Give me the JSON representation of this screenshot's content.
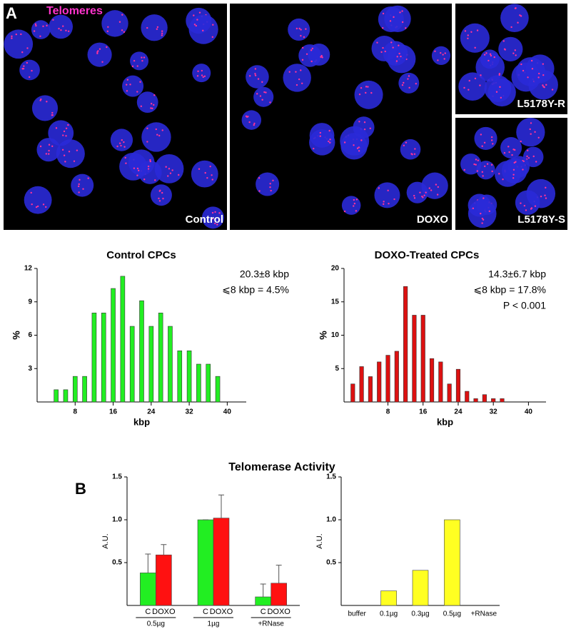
{
  "panels": {
    "a_label": "A",
    "b_label": "B",
    "stain": "Telomeres",
    "images": [
      "Control",
      "DOXO",
      "L5178Y-R",
      "L5178Y-S"
    ],
    "b_title": "Telomerase Activity"
  },
  "chart_data": [
    {
      "type": "histogram",
      "title": "Control CPCs",
      "x_label": "kbp",
      "y_label": "%",
      "color": "#22ee22",
      "x": [
        4,
        6,
        8,
        10,
        12,
        14,
        16,
        18,
        20,
        22,
        24,
        26,
        28,
        30,
        32,
        34,
        36,
        38
      ],
      "values": [
        1.1,
        1.1,
        2.3,
        2.3,
        8,
        8,
        10.2,
        11.3,
        6.8,
        9.1,
        6.8,
        8,
        6.8,
        4.6,
        4.6,
        3.4,
        3.4,
        2.3
      ],
      "xlim": [
        0,
        44
      ],
      "xticks": [
        8,
        16,
        24,
        32,
        40
      ],
      "ylim": [
        0,
        12
      ],
      "yticks": [
        3,
        6,
        9,
        12
      ],
      "annotations": [
        "20.3±8 kbp",
        "⩽8 kbp = 4.5%"
      ]
    },
    {
      "type": "histogram",
      "title": "DOXO-Treated CPCs",
      "x_label": "kbp",
      "y_label": "%",
      "color": "#dd1111",
      "x": [
        0,
        2,
        4,
        6,
        8,
        10,
        12,
        14,
        16,
        18,
        20,
        22,
        24,
        26,
        28,
        30,
        32,
        34
      ],
      "values": [
        2.7,
        5.3,
        3.8,
        6,
        7,
        7.6,
        17.3,
        13,
        13,
        6.5,
        6,
        2.7,
        4.9,
        1.6,
        0.5,
        1.1,
        0.5,
        0.5
      ],
      "xlim": [
        -2,
        44
      ],
      "xticks": [
        8,
        16,
        24,
        32,
        40
      ],
      "ylim": [
        0,
        20
      ],
      "yticks": [
        5,
        10,
        15,
        20
      ],
      "annotations": [
        "14.3±6.7 kbp",
        "⩽8 kbp = 17.8%",
        "P < 0.001"
      ]
    },
    {
      "type": "grouped",
      "y_label": "A.U.",
      "categories": [
        "0.5µg",
        "1µg",
        "+RNase"
      ],
      "series": [
        {
          "name": "C",
          "color": "#22ee22",
          "values": [
            0.38,
            1.0,
            0.1
          ],
          "errors": [
            0.22,
            0,
            0.15
          ]
        },
        {
          "name": "DOXO",
          "color": "#ff1111",
          "values": [
            0.59,
            1.02,
            0.26
          ],
          "errors": [
            0.12,
            0.27,
            0.21
          ]
        }
      ],
      "ylim": [
        0,
        1.5
      ],
      "yticks": [
        0.5,
        {
          "value": 1,
          "label": "1.0"
        },
        1.5
      ]
    },
    {
      "type": "bar",
      "y_label": "A.U.",
      "color": "#ffff22",
      "categories": [
        "buffer",
        "0.1µg",
        "0.3µg",
        "0.5µg",
        "+RNase"
      ],
      "values": [
        0,
        0.17,
        0.41,
        1.0,
        0
      ],
      "ylim": [
        0,
        1.5
      ],
      "yticks": [
        0.5,
        {
          "value": 1,
          "label": "1.0"
        },
        1.5
      ]
    }
  ]
}
